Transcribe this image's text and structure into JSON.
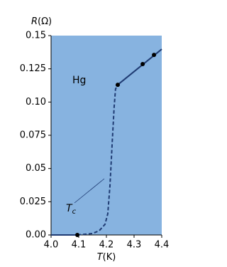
{
  "chart_data": {
    "type": "line",
    "xlabel": {
      "symbol": "T",
      "unit": "(K)"
    },
    "ylabel": {
      "symbol": "R",
      "unit": "(Ω)"
    },
    "annotations": {
      "element": "Hg",
      "tc_symbol": "T",
      "tc_subscript": "c"
    },
    "background": "#87b3e0",
    "xlim": [
      4.0,
      4.4
    ],
    "xticks": [
      {
        "value": 4.0,
        "label": "4.0"
      },
      4.1,
      4.2,
      4.3,
      4.4
    ],
    "ylim": [
      0,
      0.15
    ],
    "yticks": [
      {
        "value": 0,
        "label": "0.00"
      },
      0.025,
      0.05,
      0.075,
      {
        "value": 0.1,
        "label": "0.10"
      },
      0.125,
      0.15
    ],
    "series": [
      {
        "style": "solid",
        "color": "#1f3b73",
        "x": [
          4.0,
          4.095,
          4.17,
          4.241,
          4.4
        ],
        "values": [
          0,
          0,
          null,
          0.113,
          0.1398
        ]
      },
      {
        "style": "dashed",
        "color": "#1f3b73",
        "x": [
          4.095,
          4.149,
          4.174,
          4.195,
          4.205,
          4.213,
          4.221,
          4.228,
          4.233,
          4.241
        ],
        "values": [
          0,
          0.0011,
          0.0032,
          0.008,
          0.016,
          0.0375,
          0.0696,
          0.0964,
          0.1098,
          0.113
        ]
      },
      {
        "style": "markers",
        "color": "#000000",
        "x": [
          4.095,
          4.241,
          4.331,
          4.372
        ],
        "values": [
          0,
          0.113,
          0.1286,
          0.1355
        ]
      }
    ]
  }
}
